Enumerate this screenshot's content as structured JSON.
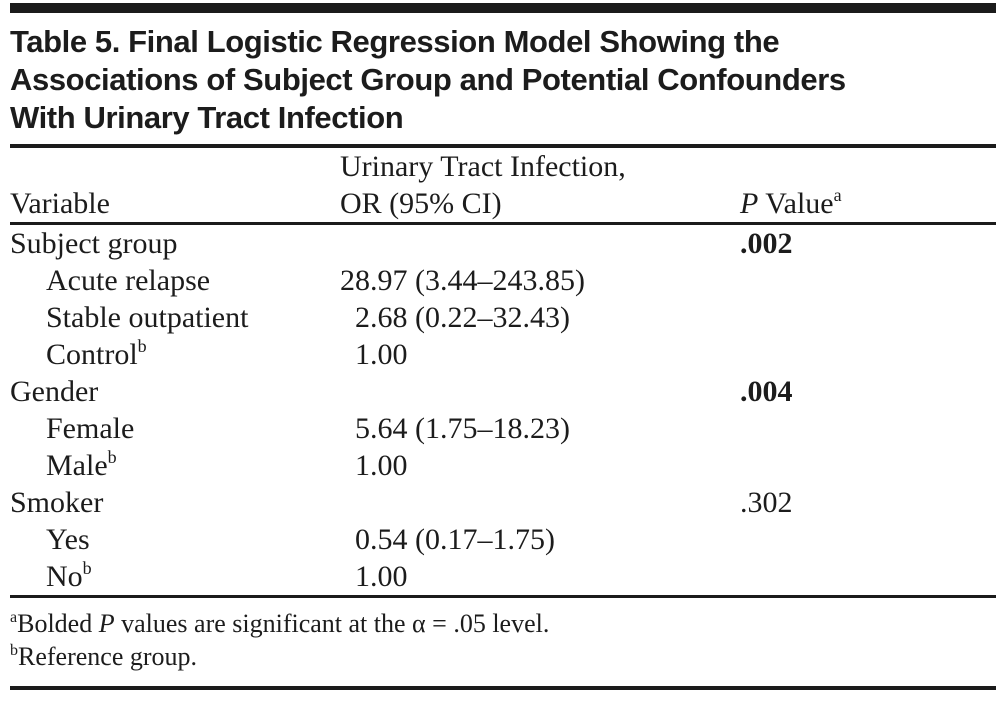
{
  "title": {
    "lines": [
      "Table 5. Final Logistic Regression Model Showing the",
      "Associations of Subject Group and Potential Confounders",
      "With Urinary Tract Infection"
    ]
  },
  "header": {
    "variable": "Variable",
    "or_line1": "Urinary Tract Infection,",
    "or_line2": "OR (95% CI)",
    "p_italic": "P",
    "p_rest": " Value",
    "p_sup": "a"
  },
  "table": {
    "rows": [
      {
        "label": "Subject group",
        "sup": "",
        "indent": false,
        "or": "",
        "p": ".002",
        "p_bold": true
      },
      {
        "label": "Acute relapse",
        "sup": "",
        "indent": true,
        "or": "28.97 (3.44–243.85)",
        "p": "",
        "p_bold": false
      },
      {
        "label": "Stable outpatient",
        "sup": "",
        "indent": true,
        "or": "2.68 (0.22–32.43)",
        "p": "",
        "p_bold": false
      },
      {
        "label": "Control",
        "sup": "b",
        "indent": true,
        "or": "1.00",
        "p": "",
        "p_bold": false
      },
      {
        "label": "Gender",
        "sup": "",
        "indent": false,
        "or": "",
        "p": ".004",
        "p_bold": true
      },
      {
        "label": "Female",
        "sup": "",
        "indent": true,
        "or": "5.64 (1.75–18.23)",
        "p": "",
        "p_bold": false
      },
      {
        "label": "Male",
        "sup": "b",
        "indent": true,
        "or": "1.00",
        "p": "",
        "p_bold": false
      },
      {
        "label": "Smoker",
        "sup": "",
        "indent": false,
        "or": "",
        "p": ".302",
        "p_bold": false
      },
      {
        "label": "Yes",
        "sup": "",
        "indent": true,
        "or": "0.54 (0.17–1.75)",
        "p": "",
        "p_bold": false
      },
      {
        "label": "No",
        "sup": "b",
        "indent": true,
        "or": "1.00",
        "p": "",
        "p_bold": false
      }
    ]
  },
  "footnotes": [
    {
      "sup": "a",
      "pre": "Bolded ",
      "italic": "P",
      "post": " values are significant at the α = .05 level."
    },
    {
      "sup": "b",
      "pre": "",
      "italic": "",
      "post": "Reference group."
    }
  ],
  "colors": {
    "ink": "#1b1b1b",
    "background": "#ffffff"
  }
}
